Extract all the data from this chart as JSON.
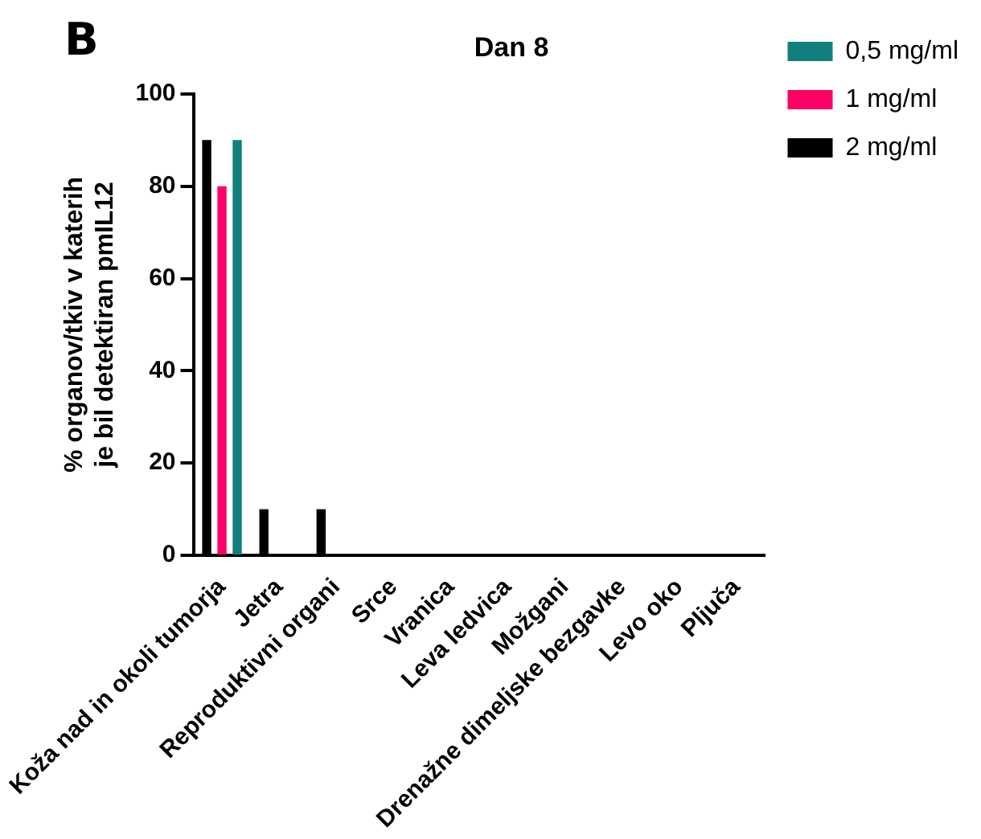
{
  "chart_data": {
    "type": "bar",
    "title": "Dan 8",
    "ylabel": "% organov/tkiv v katerih\nje bil detektiran pmIL12",
    "annotations": [
      "B"
    ],
    "categories": [
      "Koža nad in okoli tumorja",
      "Jetra",
      "Reproduktivni organi",
      "Srce",
      "Vranica",
      "Leva ledvica",
      "Možgani",
      "Drenažne dimeljske bezgavke",
      "Levo oko",
      "Pljuča"
    ],
    "series": [
      {
        "name": "2 mg/ml",
        "color": "#000000",
        "values": [
          90,
          10,
          10,
          0,
          0,
          0,
          0,
          0,
          0,
          0
        ]
      },
      {
        "name": "1 mg/ml",
        "color": "#ff0066",
        "values": [
          80,
          0,
          0,
          0,
          0,
          0,
          0,
          0,
          0,
          0
        ]
      },
      {
        "name": "0,5 mg/ml",
        "color": "#11807d",
        "values": [
          90,
          0,
          0,
          0,
          0,
          0,
          0,
          0,
          0,
          0
        ]
      }
    ],
    "ylim": [
      0,
      100
    ],
    "yticks": [
      0,
      20,
      40,
      60,
      80,
      100
    ],
    "grid": false,
    "legend": "top right"
  }
}
